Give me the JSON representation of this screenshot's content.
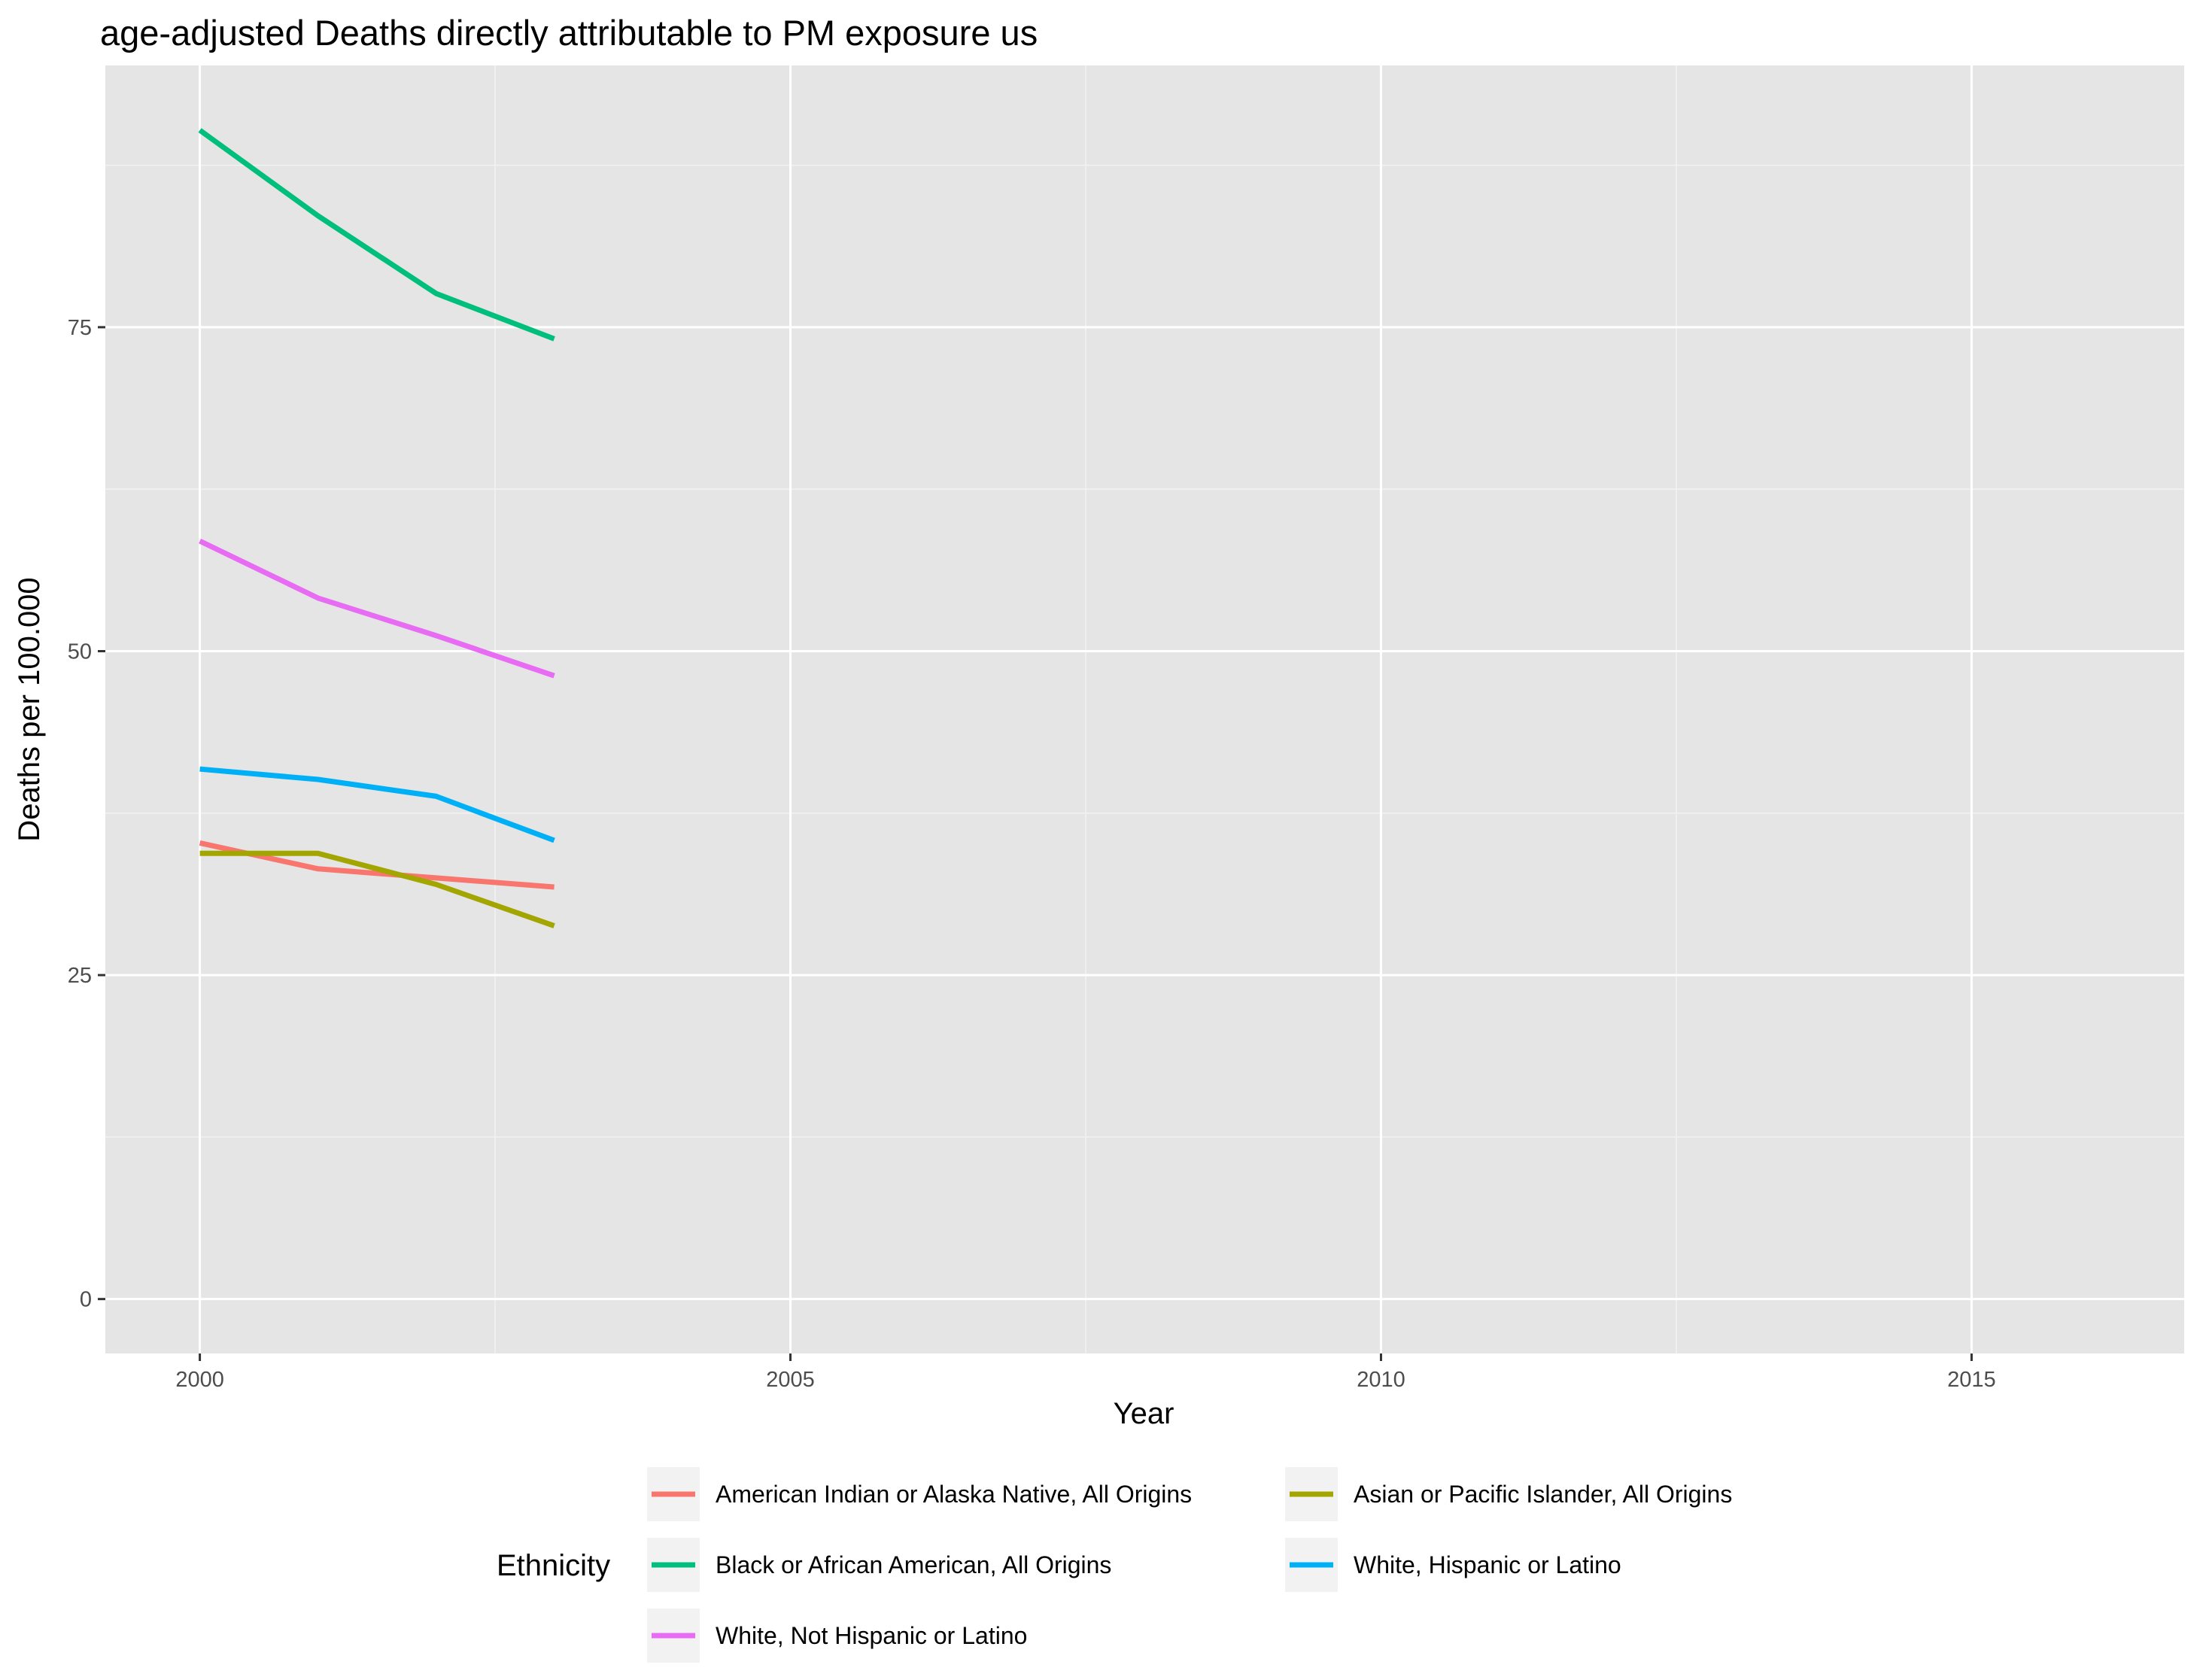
{
  "chart_data": {
    "type": "line",
    "title": "age-adjusted Deaths directly attributable to PM exposure us",
    "xlabel": "Year",
    "ylabel": "Deaths per 100.000",
    "xlim": [
      1999.2,
      2016.8
    ],
    "ylim": [
      -4.2,
      95.2
    ],
    "x_ticks": [
      2000,
      2005,
      2010,
      2015
    ],
    "x_tick_labels": [
      "2000",
      "2005",
      "2010",
      "2015"
    ],
    "y_ticks": [
      0,
      25,
      50,
      75
    ],
    "y_tick_labels": [
      "0",
      "25",
      "50",
      "75"
    ],
    "grid": true,
    "legend": {
      "title": "Ethnicity",
      "position": "bottom",
      "columns": 2
    },
    "series": [
      {
        "name": "American Indian or Alaska Native, All Origins",
        "color": "#F8766D",
        "x": [
          2000,
          2001,
          2002,
          2003
        ],
        "y": [
          35.2,
          33.2,
          32.5,
          31.8
        ]
      },
      {
        "name": "Asian or Pacific Islander, All Origins",
        "color": "#A3A500",
        "x": [
          2000,
          2001,
          2002,
          2003
        ],
        "y": [
          34.4,
          34.4,
          32.0,
          28.8
        ]
      },
      {
        "name": "Black or African American, All Origins",
        "color": "#00BF7D",
        "x": [
          2000,
          2001,
          2002,
          2003
        ],
        "y": [
          90.2,
          83.6,
          77.6,
          74.1
        ]
      },
      {
        "name": "White, Hispanic or Latino",
        "color": "#00B0F6",
        "x": [
          2000,
          2001,
          2002,
          2003
        ],
        "y": [
          40.9,
          40.1,
          38.8,
          35.4
        ]
      },
      {
        "name": "White, Not Hispanic or Latino",
        "color": "#E76BF3",
        "x": [
          2000,
          2001,
          2002,
          2003
        ],
        "y": [
          58.5,
          54.1,
          51.2,
          48.1
        ]
      }
    ]
  }
}
